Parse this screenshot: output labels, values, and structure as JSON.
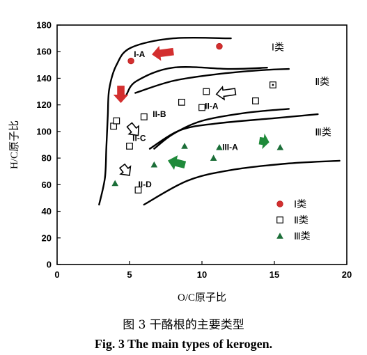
{
  "chart_data": {
    "type": "scatter",
    "title": "",
    "xlabel": "O/C原子比",
    "ylabel": "H/C原子比",
    "xlim": [
      0,
      20
    ],
    "ylim": [
      0,
      180
    ],
    "xticks": [
      "0",
      "5",
      "10",
      "15",
      "20"
    ],
    "yticks": [
      "0",
      "20",
      "40",
      "60",
      "80",
      "100",
      "120",
      "140",
      "160",
      "180"
    ],
    "grid": false,
    "legend_position": "bottom-right",
    "series": [
      {
        "name": "Ⅰ类",
        "marker": "circle",
        "color": "#d32f2f",
        "points": [
          [
            5.1,
            153
          ],
          [
            11.2,
            164
          ]
        ]
      },
      {
        "name": "Ⅱ类",
        "marker": "square",
        "color": "#000000",
        "points": [
          [
            3.9,
            104
          ],
          [
            4.1,
            108
          ],
          [
            5.0,
            89
          ],
          [
            5.6,
            56
          ],
          [
            6.0,
            111
          ],
          [
            8.6,
            122
          ],
          [
            10.0,
            118
          ],
          [
            10.3,
            130
          ],
          [
            13.7,
            123
          ],
          [
            14.9,
            135
          ]
        ]
      },
      {
        "name": "Ⅲ类",
        "marker": "triangle",
        "color": "#1b6e38",
        "points": [
          [
            4.0,
            61
          ],
          [
            6.7,
            75
          ],
          [
            8.8,
            89
          ],
          [
            10.8,
            80
          ],
          [
            11.2,
            88
          ],
          [
            15.4,
            88
          ]
        ]
      }
    ],
    "region_labels": [
      {
        "text": "Ⅰ类",
        "x": 14.8,
        "y": 161
      },
      {
        "text": "Ⅱ类",
        "x": 17.8,
        "y": 135
      },
      {
        "text": "Ⅲ类",
        "x": 17.8,
        "y": 97
      }
    ],
    "subtype_labels": [
      {
        "text": "I-A",
        "x": 5.3,
        "y": 156
      },
      {
        "text": "II-A",
        "x": 10.2,
        "y": 117
      },
      {
        "text": "II-B",
        "x": 6.6,
        "y": 111
      },
      {
        "text": "II-C",
        "x": 5.2,
        "y": 93
      },
      {
        "text": "III-A",
        "x": 11.4,
        "y": 86
      },
      {
        "text": "II-D",
        "x": 5.6,
        "y": 58
      }
    ],
    "boundary_curves": [
      [
        [
          2.9,
          45
        ],
        [
          3.3,
          65
        ],
        [
          3.4,
          88
        ],
        [
          3.5,
          112
        ],
        [
          3.6,
          132
        ],
        [
          4.1,
          150
        ],
        [
          5.1,
          163
        ],
        [
          8.0,
          170
        ],
        [
          12.0,
          170
        ]
      ],
      [
        [
          4.8,
          128
        ],
        [
          5.5,
          138
        ],
        [
          8.0,
          148
        ],
        [
          12.0,
          147
        ],
        [
          14.5,
          148
        ]
      ],
      [
        [
          5.4,
          129
        ],
        [
          8.0,
          138
        ],
        [
          11.0,
          143
        ],
        [
          14.0,
          146
        ],
        [
          16.0,
          147
        ]
      ],
      [
        [
          6.7,
          87
        ],
        [
          8.0,
          98
        ],
        [
          10.0,
          108
        ],
        [
          13.0,
          114
        ],
        [
          16.0,
          117
        ]
      ],
      [
        [
          6.4,
          87
        ],
        [
          8.5,
          101
        ],
        [
          11.0,
          106
        ],
        [
          15.0,
          110
        ],
        [
          18.0,
          113
        ]
      ],
      [
        [
          6.0,
          45
        ],
        [
          9.0,
          63
        ],
        [
          12.0,
          71
        ],
        [
          16.0,
          76
        ],
        [
          19.5,
          78
        ]
      ]
    ],
    "trend_arrows": [
      {
        "fill": "red",
        "x1": 8.0,
        "y1": 160,
        "x2": 6.6,
        "y2": 158
      },
      {
        "fill": "red",
        "x1": 4.4,
        "y1": 134,
        "x2": 4.4,
        "y2": 122
      },
      {
        "fill": "white",
        "x1": 12.3,
        "y1": 130,
        "x2": 11.0,
        "y2": 128
      },
      {
        "fill": "white",
        "x1": 5.0,
        "y1": 105,
        "x2": 5.6,
        "y2": 97
      },
      {
        "fill": "white",
        "x1": 4.5,
        "y1": 74,
        "x2": 5.0,
        "y2": 67
      },
      {
        "fill": "green",
        "x1": 8.8,
        "y1": 75,
        "x2": 7.7,
        "y2": 78
      },
      {
        "fill": "green",
        "x1": 14.0,
        "y1": 93,
        "x2": 14.6,
        "y2": 92
      }
    ]
  },
  "caption": {
    "cn": "图 3  干酪根的主要类型",
    "en": "Fig. 3 The main types of kerogen."
  },
  "colors": {
    "red": "#d32f2f",
    "green": "#1f8a3a",
    "dark_green": "#1b6e38",
    "frame": "#000000"
  }
}
